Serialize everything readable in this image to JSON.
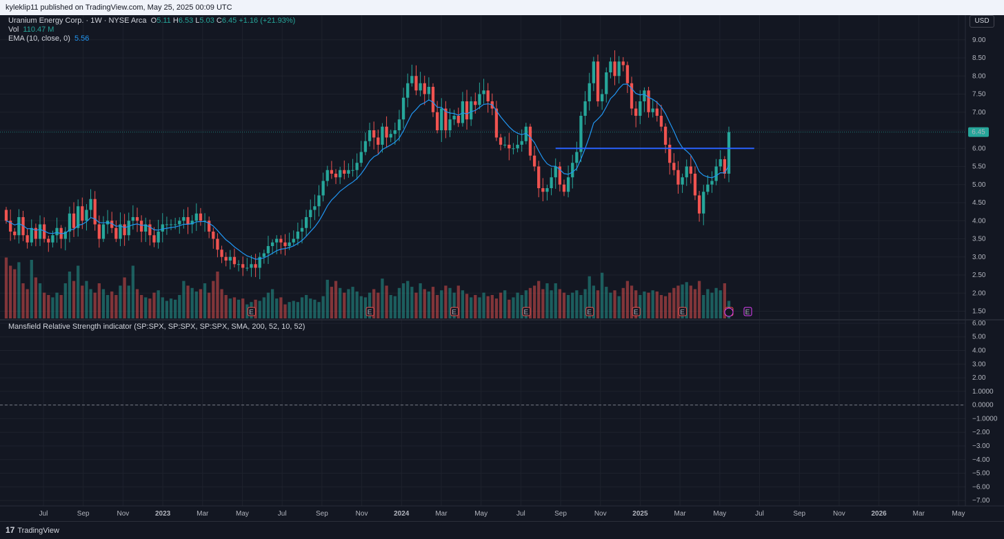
{
  "header": {
    "published": "kyleklip11 published on TradingView.com, May 25, 2025 00:09 UTC"
  },
  "legend": {
    "symbol": "Uranium Energy Corp. · 1W · NYSE Arca",
    "o_label": "O",
    "o": "5.11",
    "h_label": "H",
    "h": "6.53",
    "l_label": "L",
    "l": "5.03",
    "c_label": "C",
    "c": "6.45",
    "change": "+1.16 (+21.93%)",
    "vol_label": "Vol",
    "vol": "110.47 M",
    "ema_label": "EMA (10, close, 0)",
    "ema": "5.56",
    "mrs_label": "Mansfield Relative Strength indicator (SP:SPX, SP:SPX, SP:SPX, SMA, 200, 52, 10, 52)"
  },
  "currency_button": "USD",
  "footer": {
    "brand": "TradingView",
    "logo_text": "17"
  },
  "colors": {
    "up": "#26a69a",
    "down": "#ef5350",
    "ema": "#2196f3",
    "hline": "#2962ff",
    "background": "#131722",
    "grid": "#1e222d",
    "earnings": "#ef5350",
    "earnings_upcoming": "#e040fb"
  },
  "chart_data": [
    {
      "type": "candlestick",
      "title": "Uranium Energy Corp. · 1W · NYSE Arca",
      "x_axis_labels": [
        "Jul",
        "Sep",
        "Nov",
        "2023",
        "Mar",
        "May",
        "Jul",
        "Sep",
        "Nov",
        "2024",
        "Mar",
        "May",
        "Jul",
        "Sep",
        "Nov",
        "2025",
        "Mar",
        "May",
        "Jul",
        "Sep",
        "Nov",
        "2026",
        "Mar",
        "May"
      ],
      "y_ticks": [
        "9.00",
        "8.50",
        "8.00",
        "7.50",
        "7.00",
        "6.50",
        "6.00",
        "5.50",
        "5.00",
        "4.50",
        "4.00",
        "3.50",
        "3.00",
        "2.50",
        "2.00",
        "1.50"
      ],
      "ylim": [
        1.3,
        9.3
      ],
      "last_price_label": "6.45",
      "close": [
        4.0,
        3.7,
        3.6,
        4.1,
        3.6,
        3.4,
        3.8,
        3.5,
        3.9,
        3.5,
        3.4,
        3.6,
        3.8,
        3.5,
        3.7,
        4.2,
        3.8,
        4.4,
        4.0,
        4.3,
        4.6,
        3.9,
        3.5,
        3.9,
        4.0,
        3.8,
        3.5,
        3.9,
        3.6,
        4.0,
        4.1,
        4.0,
        3.7,
        3.9,
        3.6,
        3.4,
        3.7,
        3.9,
        3.9,
        3.9,
        3.9,
        4.0,
        4.1,
        3.9,
        4.0,
        4.2,
        4.0,
        4.0,
        3.7,
        3.5,
        3.2,
        3.0,
        2.9,
        3.0,
        2.8,
        2.8,
        2.7,
        2.7,
        2.8,
        2.7,
        3.0,
        3.1,
        3.3,
        3.4,
        3.5,
        3.4,
        3.3,
        3.4,
        3.5,
        3.7,
        3.8,
        4.1,
        4.3,
        4.4,
        4.7,
        5.1,
        5.4,
        5.3,
        5.2,
        5.4,
        5.3,
        5.4,
        5.4,
        5.6,
        5.9,
        6.2,
        6.5,
        6.3,
        6.1,
        6.6,
        6.3,
        6.4,
        6.5,
        6.8,
        7.4,
        7.8,
        8.0,
        7.6,
        7.8,
        7.5,
        7.7,
        7.0,
        6.5,
        7.1,
        6.5,
        6.8,
        6.9,
        6.7,
        7.3,
        6.8,
        7.3,
        7.2,
        7.5,
        7.6,
        7.3,
        7.1,
        6.3,
        6.1,
        6.1,
        6.0,
        6.0,
        6.1,
        6.2,
        6.6,
        5.8,
        5.5,
        4.9,
        4.8,
        4.9,
        5.2,
        5.5,
        5.0,
        4.8,
        5.2,
        5.6,
        5.9,
        6.9,
        7.3,
        7.8,
        8.4,
        7.3,
        7.5,
        8.1,
        8.4,
        8.0,
        8.4,
        8.3,
        7.8,
        7.1,
        6.9,
        7.3,
        7.6,
        7.0,
        7.1,
        6.9,
        6.6,
        6.1,
        5.6,
        5.4,
        5.0,
        5.2,
        5.5,
        5.3,
        4.7,
        4.2,
        4.8,
        5.0,
        5.1,
        5.5,
        5.7,
        5.3,
        6.45
      ],
      "ema_label": "EMA (10, close, 0)",
      "horizontal_line": {
        "value": 6.0,
        "from_bar": 130,
        "to_bar": 177
      },
      "earnings_markers": "E"
    },
    {
      "type": "bar",
      "title": "Vol",
      "series_name": "Vol",
      "last_value": "110.47 M",
      "relative_heights_bars": [
        0.52,
        0.45,
        0.42,
        0.48,
        0.3,
        0.25,
        0.5,
        0.35,
        0.3,
        0.22,
        0.2,
        0.18,
        0.22,
        0.2,
        0.3,
        0.4,
        0.32,
        0.45,
        0.28,
        0.32,
        0.25,
        0.22,
        0.3,
        0.25,
        0.2,
        0.23,
        0.2,
        0.28,
        0.35,
        0.28,
        0.45,
        0.25,
        0.2,
        0.18,
        0.17,
        0.22,
        0.24,
        0.18,
        0.15,
        0.17,
        0.16,
        0.2,
        0.32,
        0.28,
        0.26,
        0.23,
        0.25,
        0.3,
        0.22,
        0.32,
        0.4,
        0.25,
        0.2,
        0.17,
        0.18,
        0.16,
        0.17,
        0.12,
        0.14,
        0.16,
        0.15,
        0.18,
        0.22,
        0.25,
        0.17,
        0.18,
        0.12,
        0.14,
        0.15,
        0.14,
        0.18,
        0.2,
        0.17,
        0.16,
        0.14,
        0.19,
        0.33,
        0.27,
        0.32,
        0.26,
        0.22,
        0.25,
        0.27,
        0.23,
        0.19,
        0.18,
        0.22,
        0.25,
        0.22,
        0.34,
        0.28,
        0.2,
        0.19,
        0.26,
        0.3,
        0.32,
        0.27,
        0.22,
        0.3,
        0.25,
        0.23,
        0.27,
        0.2,
        0.24,
        0.28,
        0.26,
        0.22,
        0.28,
        0.24,
        0.21,
        0.18,
        0.2,
        0.18,
        0.22,
        0.19,
        0.2,
        0.17,
        0.22,
        0.24,
        0.16,
        0.18,
        0.22,
        0.2,
        0.24,
        0.26,
        0.28,
        0.32,
        0.25,
        0.3,
        0.24,
        0.3,
        0.25,
        0.22,
        0.2,
        0.22,
        0.24,
        0.2,
        0.25,
        0.36,
        0.28,
        0.24,
        0.39,
        0.27,
        0.22,
        0.24,
        0.19,
        0.26,
        0.32,
        0.28,
        0.24,
        0.2,
        0.23,
        0.22,
        0.24,
        0.23,
        0.2,
        0.19,
        0.22,
        0.26,
        0.28,
        0.29,
        0.31,
        0.28,
        0.25,
        0.32,
        0.2,
        0.25,
        0.22,
        0.26,
        0.24,
        0.3,
        0.15,
        0.23,
        0.31,
        0.52
      ]
    },
    {
      "type": "line",
      "title": "Mansfield Relative Strength indicator (SP:SPX, SP:SPX, SP:SPX, SMA, 200, 52, 10, 52)",
      "y_ticks": [
        "6.00",
        "5.00",
        "4.00",
        "3.00",
        "2.00",
        "1.0000",
        "0.0000",
        "−1.0000",
        "−2.00",
        "−3.00",
        "−4.00",
        "−5.00",
        "−6.00",
        "−7.00"
      ],
      "ylim": [
        -7.4,
        6.2
      ],
      "zero_line": 0
    }
  ]
}
